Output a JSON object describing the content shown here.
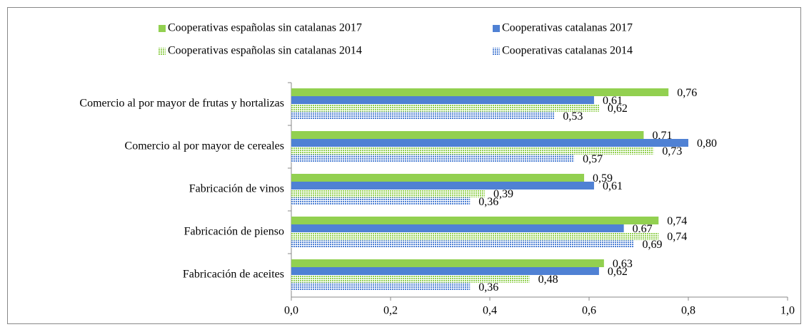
{
  "chart_data": {
    "type": "hbar",
    "categories": [
      "Comercio al por mayor de frutas y hortalizas",
      "Comercio al por mayor de cereales",
      "Fabricación de vinos",
      "Fabricación de pienso",
      "Fabricación de aceites"
    ],
    "series": [
      {
        "name": "Cooperativas españolas sin catalanas 2017",
        "color": "#92d050",
        "values": [
          0.76,
          0.71,
          0.59,
          0.74,
          0.63
        ],
        "value_labels": [
          "0,76",
          "0,71",
          "0,59",
          "0,74",
          "0,63"
        ]
      },
      {
        "name": "Cooperativas catalanas 2017",
        "color": "#4f81d4",
        "values": [
          0.61,
          0.8,
          0.61,
          0.67,
          0.62
        ],
        "value_labels": [
          "0,61",
          "0,80",
          "0,61",
          "0,67",
          "0,62"
        ]
      },
      {
        "name": "Cooperativas españolas sin catalanas 2014",
        "color": "#92d050",
        "pattern": "dots",
        "values": [
          0.62,
          0.73,
          0.39,
          0.74,
          0.48
        ],
        "value_labels": [
          "0,62",
          "0,73",
          "0,39",
          "0,74",
          "0,48"
        ]
      },
      {
        "name": "Cooperativas catalanas 2014",
        "color": "#4f81d4",
        "pattern": "dots",
        "values": [
          0.53,
          0.57,
          0.36,
          0.69,
          0.36
        ],
        "value_labels": [
          "0,53",
          "0,57",
          "0,36",
          "0,69",
          "0,36"
        ]
      }
    ],
    "xlim": [
      0,
      1.0
    ],
    "xticks": [
      {
        "value": 0,
        "label": "0,0"
      },
      {
        "value": 0.2,
        "label": "0,2"
      },
      {
        "value": 0.4,
        "label": "0,4"
      },
      {
        "value": 0.6,
        "label": "0,6"
      },
      {
        "value": 0.8,
        "label": "0,8"
      },
      {
        "value": 1.0,
        "label": "1,0"
      }
    ],
    "legend": "top"
  }
}
